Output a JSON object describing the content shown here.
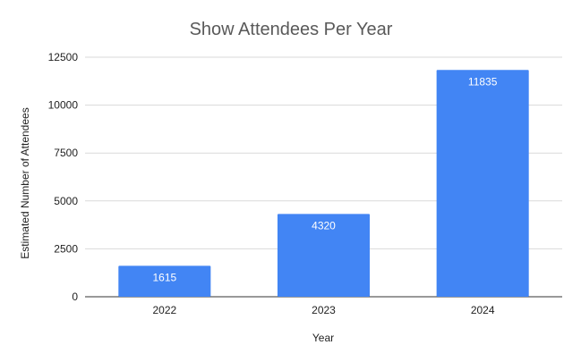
{
  "chart_data": {
    "type": "bar",
    "title": "Show Attendees Per Year",
    "xlabel": "Year",
    "ylabel": "Estimated Number of Attendees",
    "categories": [
      "2022",
      "2023",
      "2024"
    ],
    "values": [
      1615,
      4320,
      11835
    ],
    "data_labels": [
      "1615",
      "4320",
      "11835"
    ],
    "ylim": [
      0,
      12500
    ],
    "yticks": [
      0,
      2500,
      5000,
      7500,
      10000,
      12500
    ],
    "ytick_labels": [
      "0",
      "2500",
      "5000",
      "7500",
      "10000",
      "12500"
    ],
    "grid": true,
    "legend": "none",
    "bar_color": "#4285f4"
  }
}
